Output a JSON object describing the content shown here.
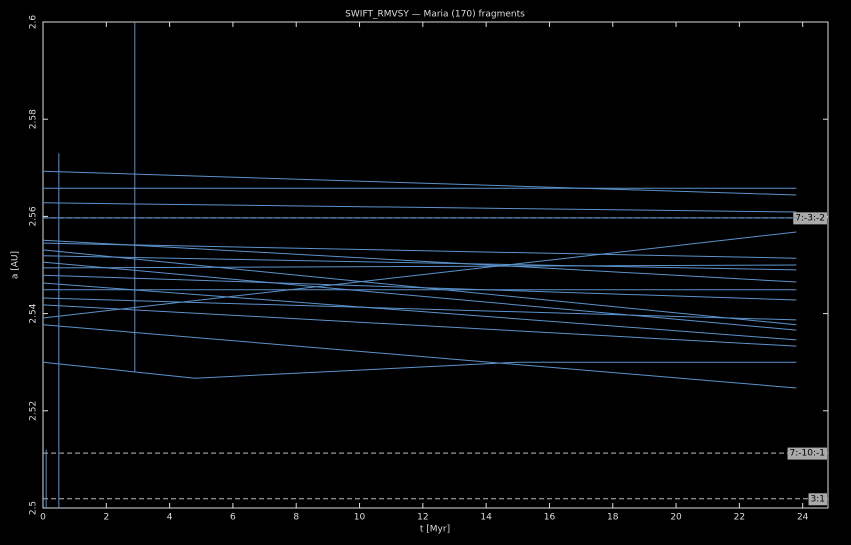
{
  "chart_data": {
    "type": "line",
    "title": "SWIFT_RMVSY — Maria (170) fragments",
    "xlabel": "t [Myr]",
    "ylabel": "a [AU]",
    "xlim": [
      0,
      24.8
    ],
    "ylim": [
      2.5,
      2.6
    ],
    "xticks": [
      0,
      2,
      4,
      6,
      8,
      10,
      12,
      14,
      16,
      18,
      20,
      22,
      24
    ],
    "yticks": [
      2.5,
      2.52,
      2.54,
      2.56,
      2.58,
      2.6
    ],
    "color": "#5b93cc",
    "resonances": [
      {
        "value": 2.5597,
        "label": "7:-3:-2"
      },
      {
        "value": 2.5113,
        "label": "7:-10:-1"
      },
      {
        "value": 2.5019,
        "label": "3:1"
      }
    ],
    "series": [
      {
        "x": [
          0,
          23.8
        ],
        "values": [
          2.5693,
          2.5644
        ]
      },
      {
        "x": [
          0,
          23.8
        ],
        "values": [
          2.5658,
          2.5658
        ]
      },
      {
        "x": [
          0,
          23.8
        ],
        "values": [
          2.5628,
          2.5609
        ]
      },
      {
        "x": [
          0,
          23.8
        ],
        "values": [
          2.5597,
          2.5597
        ]
      },
      {
        "x": [
          0,
          23.8
        ],
        "values": [
          2.5551,
          2.5465
        ]
      },
      {
        "x": [
          0,
          23.8
        ],
        "values": [
          2.5545,
          2.5514
        ]
      },
      {
        "x": [
          0,
          23.8
        ],
        "values": [
          2.5531,
          2.5377
        ]
      },
      {
        "x": [
          0,
          23.8
        ],
        "values": [
          2.5519,
          2.549
        ]
      },
      {
        "x": [
          0,
          23.8
        ],
        "values": [
          2.5506,
          2.5366
        ]
      },
      {
        "x": [
          0,
          23.8
        ],
        "values": [
          2.5494,
          2.55
        ]
      },
      {
        "x": [
          0,
          23.8
        ],
        "values": [
          2.5479,
          2.5428
        ]
      },
      {
        "x": [
          0,
          23.8
        ],
        "values": [
          2.5463,
          2.5346
        ]
      },
      {
        "x": [
          0,
          23.8
        ],
        "values": [
          2.5449,
          2.5449
        ]
      },
      {
        "x": [
          0,
          23.8
        ],
        "values": [
          2.5432,
          2.5387
        ]
      },
      {
        "x": [
          0,
          23.8
        ],
        "values": [
          2.5418,
          2.5333
        ]
      },
      {
        "x": [
          0,
          23.8
        ],
        "values": [
          2.5391,
          2.5568
        ]
      },
      {
        "x": [
          0,
          23.8
        ],
        "values": [
          2.5377,
          2.5247
        ]
      },
      {
        "x": [
          0,
          4.8,
          15,
          23.8
        ],
        "values": [
          2.53,
          2.5267,
          2.53,
          2.53
        ]
      },
      {
        "x": [
          2.9,
          2.9
        ],
        "values": [
          2.528,
          2.6
        ]
      },
      {
        "x": [
          0.5,
          0.5
        ],
        "values": [
          2.5,
          2.573
        ]
      },
      {
        "x": [
          0.1,
          0.1
        ],
        "values": [
          2.5,
          2.512
        ]
      }
    ]
  }
}
